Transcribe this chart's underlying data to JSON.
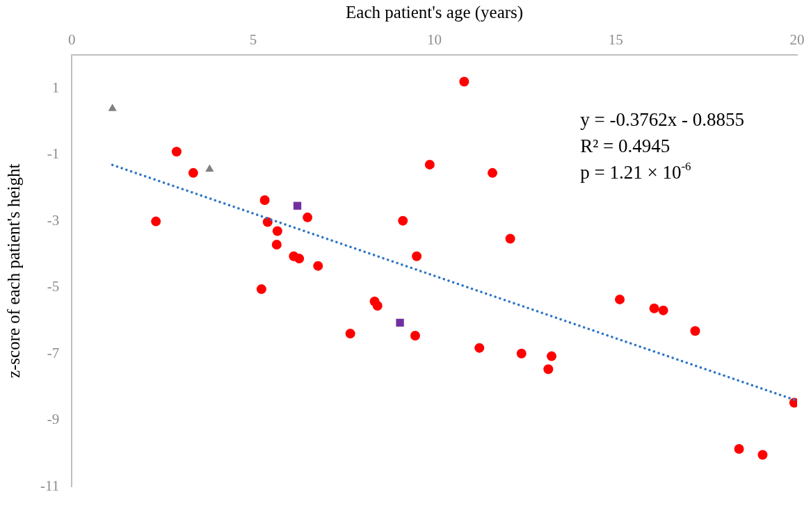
{
  "chart_data": {
    "type": "scatter",
    "xlabel": "Each patient's age (years)",
    "ylabel": "z-score of each patient's height",
    "xlim": [
      0,
      20
    ],
    "xticks": [
      0,
      5,
      10,
      15,
      20
    ],
    "ylim": [
      -11,
      2
    ],
    "yticks": [
      -11,
      -9,
      -7,
      -5,
      -3,
      -1,
      1
    ],
    "grid": false,
    "legend": false,
    "annotations": [
      "y = -0.3762x - 0.8855",
      "R² = 0.4945",
      "p = 1.21 × 10$^{-6}$"
    ],
    "series": [
      {
        "marker": "circle",
        "color": "#ff0000",
        "x": [
          2.32,
          2.89,
          3.35,
          5.32,
          5.4,
          5.67,
          5.65,
          5.23,
          6.12,
          6.27,
          6.5,
          6.79,
          7.68,
          8.35,
          8.43,
          9.13,
          9.47,
          9.51,
          9.87,
          10.82,
          11.24,
          11.6,
          12.09,
          12.4,
          13.14,
          13.23,
          15.11,
          16.06,
          16.31,
          17.19,
          19.92,
          18.4,
          19.05
        ],
        "values": [
          -3.01,
          -0.91,
          -1.55,
          -2.37,
          -3.03,
          -3.3,
          -3.71,
          -5.05,
          -4.06,
          -4.13,
          -2.89,
          -4.35,
          -6.39,
          -5.42,
          -5.55,
          -2.99,
          -6.45,
          -4.06,
          -1.3,
          1.2,
          -6.82,
          -1.55,
          -3.53,
          -6.99,
          -7.46,
          -7.07,
          -5.36,
          -5.63,
          -5.69,
          -6.31,
          -8.47,
          -9.86,
          -10.04
        ]
      },
      {
        "marker": "triangle",
        "color": "#808080",
        "x": [
          1.12,
          3.8
        ],
        "values": [
          0.39,
          -1.44
        ]
      },
      {
        "marker": "square",
        "color": "#7030a0",
        "x": [
          6.22,
          9.05
        ],
        "values": [
          -2.54,
          -6.06
        ]
      },
      {
        "type": "line",
        "marker": "none",
        "line_style": "dotted",
        "color": "#2e75c6",
        "x": [
          1.12,
          19.92
        ],
        "values": [
          -1.31,
          -8.38
        ]
      }
    ]
  }
}
